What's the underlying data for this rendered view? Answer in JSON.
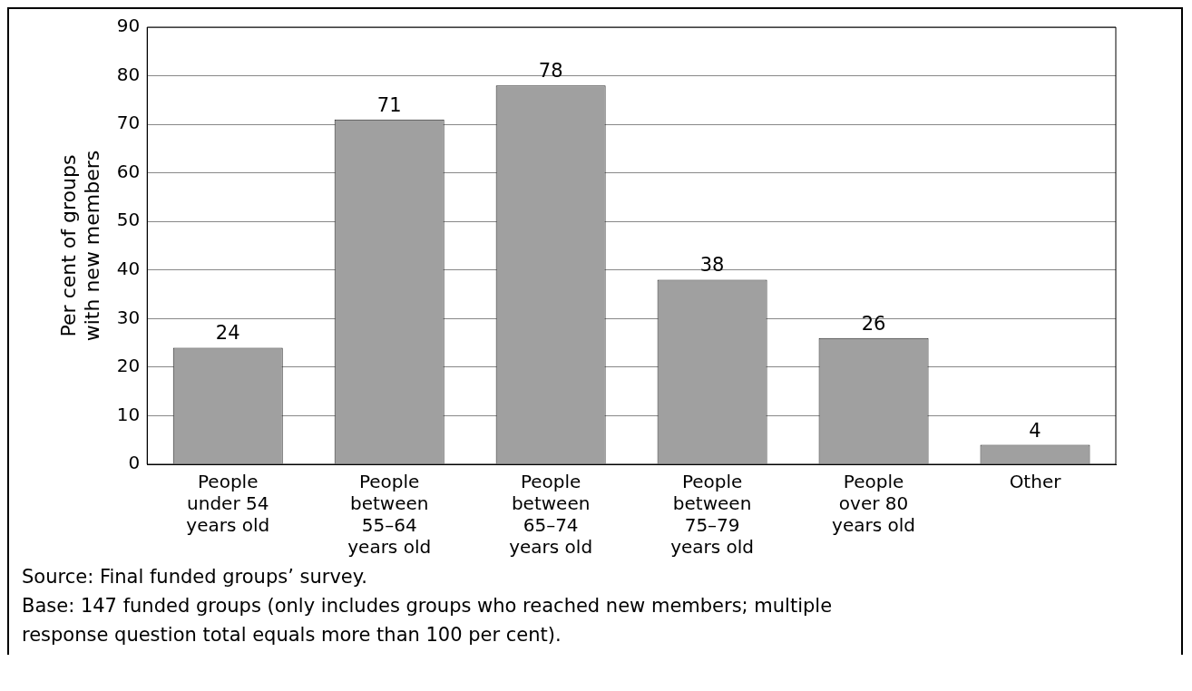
{
  "chart_data": {
    "type": "bar",
    "ylabel": "Per cent of groups with new members",
    "categories": [
      "People under 54 years old",
      "People between 55–64 years old",
      "People between 65–74 years old",
      "People between 75–79 years old",
      "People over 80 years old",
      "Other"
    ],
    "values": [
      24,
      71,
      78,
      38,
      26,
      4
    ],
    "color": "#a0a0a0",
    "ylim": [
      0,
      90
    ],
    "yticks": [
      0,
      10,
      20,
      30,
      40,
      50,
      60,
      70,
      80,
      90
    ],
    "grid": "y",
    "legend": false,
    "data_labels": true,
    "annotations": [
      "Source: Final funded groups’ survey.",
      "Base: 147 funded groups (only includes groups who reached new members; multiple response question total equals more than 100 per cent)."
    ]
  }
}
